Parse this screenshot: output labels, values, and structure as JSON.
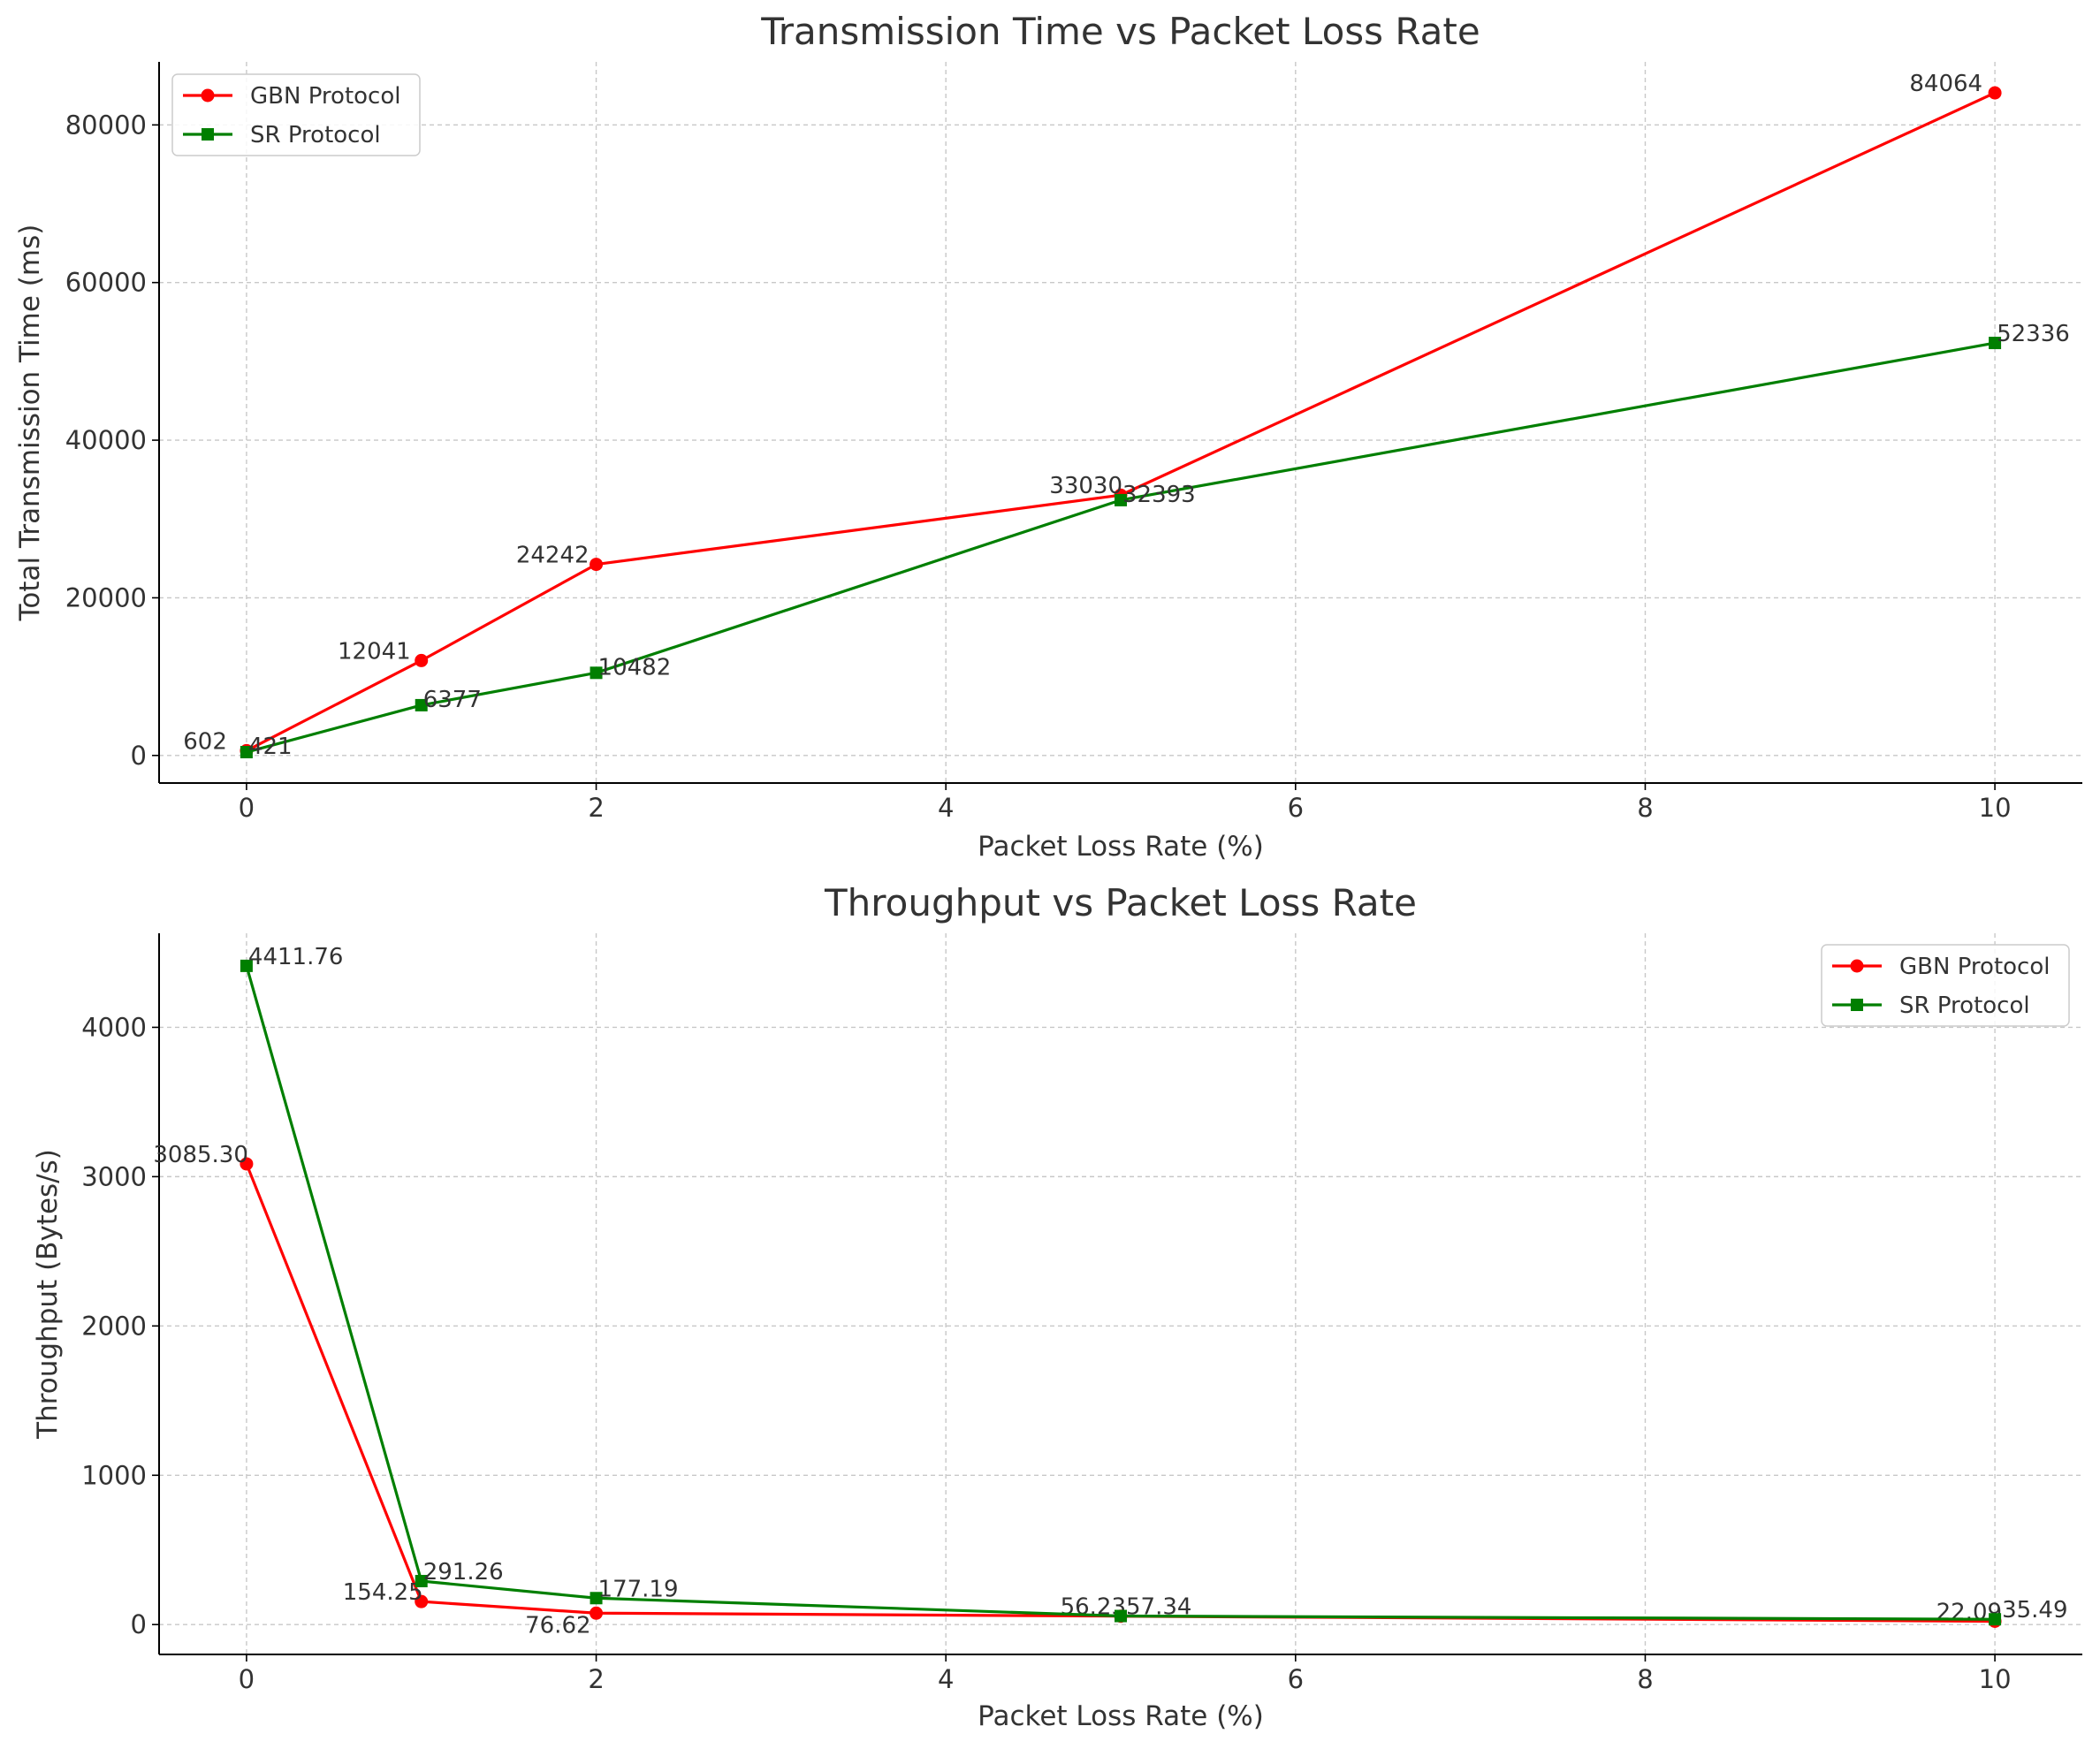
{
  "chart_data": [
    {
      "type": "line",
      "title": "Transmission Time vs Packet Loss Rate",
      "xlabel": "Packet Loss Rate (%)",
      "ylabel": "Total Transmission Time (ms)",
      "xlim": [
        -0.5,
        10.5
      ],
      "ylim": [
        -3500,
        88000
      ],
      "xticks": [
        0,
        2,
        4,
        6,
        8,
        10
      ],
      "yticks": [
        0,
        20000,
        40000,
        60000,
        80000
      ],
      "grid": true,
      "legend_position": "top-left",
      "x": [
        0,
        1,
        2,
        5,
        10
      ],
      "series": [
        {
          "name": "GBN Protocol",
          "color": "#ff0000",
          "marker": "circle",
          "values": [
            602,
            12041,
            24242,
            33030,
            84064
          ],
          "labels": [
            "602",
            "12041",
            "24242",
            "33030",
            "84064"
          ]
        },
        {
          "name": "SR Protocol",
          "color": "#007f00",
          "marker": "square",
          "values": [
            421,
            6377,
            10482,
            32393,
            52336
          ],
          "labels": [
            "421",
            "6377",
            "10482",
            "32393",
            "52336"
          ]
        }
      ]
    },
    {
      "type": "line",
      "title": "Throughput vs Packet Loss Rate",
      "xlabel": "Packet Loss Rate (%)",
      "ylabel": "Throughput (Bytes/s)",
      "xlim": [
        -0.5,
        10.5
      ],
      "ylim": [
        -200,
        4630
      ],
      "xticks": [
        0,
        2,
        4,
        6,
        8,
        10
      ],
      "yticks": [
        0,
        1000,
        2000,
        3000,
        4000
      ],
      "grid": true,
      "legend_position": "top-right",
      "x": [
        0,
        1,
        2,
        5,
        10
      ],
      "series": [
        {
          "name": "GBN Protocol",
          "color": "#ff0000",
          "marker": "circle",
          "values": [
            3085.3,
            154.25,
            76.62,
            56.23,
            22.09
          ],
          "labels": [
            "3085.30",
            "154.25",
            "76.62",
            "56.23",
            "22.09"
          ]
        },
        {
          "name": "SR Protocol",
          "color": "#007f00",
          "marker": "square",
          "values": [
            4411.76,
            291.26,
            177.19,
            57.34,
            35.49
          ],
          "labels": [
            "4411.76",
            "291.26",
            "177.19",
            "57.34",
            "35.49"
          ]
        }
      ]
    }
  ]
}
